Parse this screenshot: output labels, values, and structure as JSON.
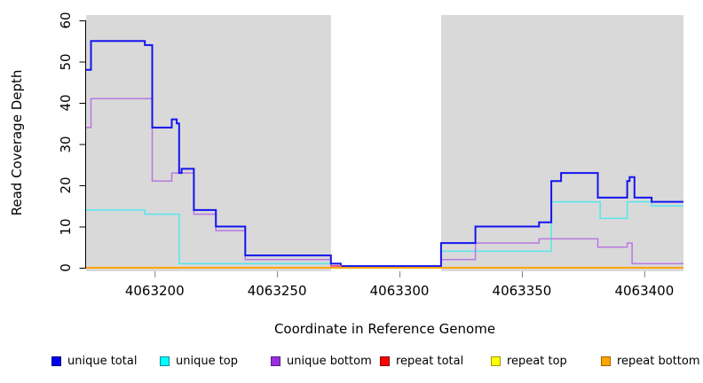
{
  "chart_data": {
    "type": "line",
    "title": "",
    "xlabel": "Coordinate in Reference Genome",
    "ylabel": "Read Coverage Depth",
    "xlim": [
      4063172,
      4063416
    ],
    "ylim": [
      0,
      60
    ],
    "x_ticks": [
      4063200,
      4063250,
      4063300,
      4063350,
      4063400
    ],
    "y_ticks": [
      0,
      10,
      20,
      30,
      40,
      50,
      60
    ],
    "grid": false,
    "step_mode": "after",
    "band_color": "#d9d9d9",
    "gap_region": [
      4063272,
      4063317
    ],
    "shaded_regions": [
      [
        4063172,
        4063272
      ],
      [
        4063317,
        4063416
      ]
    ],
    "series": [
      {
        "name": "unique top",
        "color": "#57e7ec",
        "width": 1.5,
        "points": [
          [
            4063172,
            14
          ],
          [
            4063196,
            13
          ],
          [
            4063210,
            1
          ],
          [
            4063276,
            0
          ],
          [
            4063317,
            4
          ],
          [
            4063362,
            16
          ],
          [
            4063382,
            12
          ],
          [
            4063393,
            16
          ],
          [
            4063403,
            15
          ]
        ]
      },
      {
        "name": "unique bottom",
        "color": "#b878e2",
        "width": 1.5,
        "points": [
          [
            4063172,
            34
          ],
          [
            4063174,
            41
          ],
          [
            4063199,
            21
          ],
          [
            4063207,
            23
          ],
          [
            4063216,
            13
          ],
          [
            4063225,
            9
          ],
          [
            4063237,
            2
          ],
          [
            4063272,
            0.25
          ],
          [
            4063317,
            2
          ],
          [
            4063331,
            6
          ],
          [
            4063357,
            7
          ],
          [
            4063381,
            5
          ],
          [
            4063393,
            6
          ],
          [
            4063395,
            1
          ]
        ]
      },
      {
        "name": "unique total",
        "color": "#1414ee",
        "width": 2,
        "points": [
          [
            4063172,
            48
          ],
          [
            4063174,
            55
          ],
          [
            4063196,
            54
          ],
          [
            4063199,
            34
          ],
          [
            4063207,
            36
          ],
          [
            4063209,
            35
          ],
          [
            4063210,
            23
          ],
          [
            4063211,
            24
          ],
          [
            4063216,
            14
          ],
          [
            4063225,
            10
          ],
          [
            4063237,
            3
          ],
          [
            4063272,
            1
          ],
          [
            4063276,
            0.4
          ],
          [
            4063317,
            6
          ],
          [
            4063331,
            10
          ],
          [
            4063357,
            11
          ],
          [
            4063362,
            21
          ],
          [
            4063366,
            23
          ],
          [
            4063381,
            17
          ],
          [
            4063393,
            21
          ],
          [
            4063394,
            22
          ],
          [
            4063396,
            17
          ],
          [
            4063403,
            16
          ]
        ]
      },
      {
        "name": "repeat total",
        "color": "#ff5a6e",
        "width": 1.5,
        "points": [
          [
            4063172,
            0
          ],
          [
            4063272,
            0.5
          ],
          [
            4063276,
            0
          ]
        ]
      },
      {
        "name": "repeat top",
        "color": "#ffff00",
        "width": 1.5,
        "points": [
          [
            4063172,
            0
          ]
        ]
      },
      {
        "name": "repeat bottom",
        "color": "#ffa500",
        "width": 2,
        "points": [
          [
            4063172,
            0
          ]
        ]
      }
    ],
    "legend": {
      "position": "bottom",
      "items": [
        {
          "label": "unique total",
          "fill": "#0000ee",
          "border": "#000080"
        },
        {
          "label": "unique top",
          "fill": "#00ffff",
          "border": "#008b9e"
        },
        {
          "label": "unique bottom",
          "fill": "#9b2fdc",
          "border": "#5a1a8c"
        },
        {
          "label": "repeat total",
          "fill": "#ff0000",
          "border": "#8b0000"
        },
        {
          "label": "repeat top",
          "fill": "#ffff00",
          "border": "#9a9a00"
        },
        {
          "label": "repeat bottom",
          "fill": "#ffa500",
          "border": "#a66000"
        }
      ]
    }
  }
}
